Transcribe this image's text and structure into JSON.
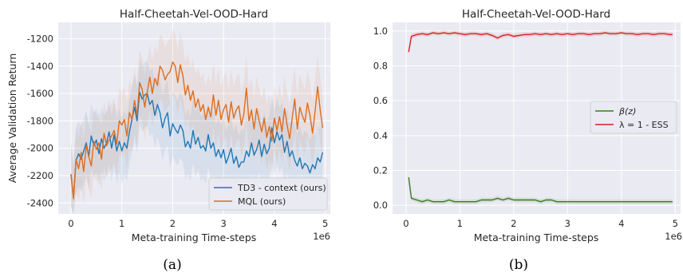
{
  "chart_data": [
    {
      "type": "line",
      "title": "Half-Cheetah-Vel-OOD-Hard",
      "xlabel": "Meta-training Time-steps",
      "ylabel": "Average Validation Return",
      "x_offset_text": "1e6",
      "xlim": [
        -0.25,
        5.1
      ],
      "ylim": [
        -2480,
        -1080
      ],
      "xticks": [
        0,
        1,
        2,
        3,
        4,
        5
      ],
      "xtick_labels": [
        "0",
        "1",
        "2",
        "3",
        "4",
        "5"
      ],
      "yticks": [
        -2400,
        -2200,
        -2000,
        -1800,
        -1600,
        -1400,
        -1200
      ],
      "ytick_labels": [
        "-2400",
        "-2200",
        "-2000",
        "-1800",
        "-1600",
        "-1400",
        "-1200"
      ],
      "grid": true,
      "legend_position": "lower-right",
      "caption": "(a)",
      "x": [
        0,
        0.05,
        0.1,
        0.15,
        0.2,
        0.25,
        0.3,
        0.35,
        0.4,
        0.45,
        0.5,
        0.55,
        0.6,
        0.65,
        0.7,
        0.75,
        0.8,
        0.85,
        0.9,
        0.95,
        1.0,
        1.05,
        1.1,
        1.15,
        1.2,
        1.25,
        1.3,
        1.35,
        1.4,
        1.45,
        1.5,
        1.55,
        1.6,
        1.65,
        1.7,
        1.75,
        1.8,
        1.85,
        1.9,
        1.95,
        2.0,
        2.05,
        2.1,
        2.15,
        2.2,
        2.25,
        2.3,
        2.35,
        2.4,
        2.45,
        2.5,
        2.55,
        2.6,
        2.65,
        2.7,
        2.75,
        2.8,
        2.85,
        2.9,
        2.95,
        3.0,
        3.05,
        3.1,
        3.15,
        3.2,
        3.25,
        3.3,
        3.35,
        3.4,
        3.45,
        3.5,
        3.55,
        3.6,
        3.65,
        3.7,
        3.75,
        3.8,
        3.85,
        3.9,
        3.95,
        4.0,
        4.05,
        4.1,
        4.15,
        4.2,
        4.25,
        4.3,
        4.35,
        4.4,
        4.45,
        4.5,
        4.55,
        4.6,
        4.65,
        4.7,
        4.75,
        4.8,
        4.85,
        4.9,
        4.95
      ],
      "series": [
        {
          "name": "TD3 - context (ours)",
          "color": "#1f77b4",
          "values": [
            -2190,
            -2360,
            -2090,
            -2040,
            -2080,
            -2020,
            -1960,
            -2060,
            -1910,
            -1980,
            -1940,
            -2040,
            -1930,
            -2000,
            -1960,
            -1880,
            -2000,
            -1900,
            -2020,
            -1950,
            -2020,
            -1960,
            -2000,
            -1880,
            -1790,
            -1700,
            -1800,
            -1590,
            -1640,
            -1610,
            -1600,
            -1680,
            -1650,
            -1760,
            -1680,
            -1740,
            -1850,
            -1780,
            -1740,
            -1910,
            -1820,
            -1860,
            -1890,
            -1830,
            -1870,
            -1990,
            -1950,
            -2000,
            -1870,
            -1970,
            -1920,
            -2000,
            -1980,
            -2020,
            -1900,
            -2000,
            -1960,
            -2060,
            -2010,
            -2070,
            -2010,
            -2110,
            -2060,
            -2000,
            -2110,
            -2060,
            -2140,
            -2100,
            -2100,
            -2020,
            -2060,
            -1960,
            -2050,
            -2010,
            -1940,
            -2060,
            -1970,
            -2040,
            -2000,
            -1850,
            -1960,
            -1880,
            -1940,
            -1900,
            -2030,
            -1950,
            -2060,
            -2020,
            -2090,
            -2130,
            -2070,
            -2150,
            -2110,
            -2130,
            -2180,
            -2120,
            -2150,
            -2070,
            -2100,
            -2030
          ]
        },
        {
          "name": "MQL (ours)",
          "color": "#dd6d1e",
          "values": [
            -2190,
            -2370,
            -2080,
            -2150,
            -2030,
            -2170,
            -1980,
            -2060,
            -2130,
            -1950,
            -2010,
            -1960,
            -2080,
            -1890,
            -1980,
            -1940,
            -1910,
            -1870,
            -1970,
            -1800,
            -1830,
            -1790,
            -1910,
            -1740,
            -1790,
            -1650,
            -1760,
            -1520,
            -1570,
            -1700,
            -1590,
            -1480,
            -1600,
            -1490,
            -1540,
            -1400,
            -1430,
            -1500,
            -1460,
            -1440,
            -1370,
            -1400,
            -1520,
            -1390,
            -1470,
            -1610,
            -1540,
            -1650,
            -1580,
            -1700,
            -1640,
            -1730,
            -1680,
            -1790,
            -1700,
            -1770,
            -1610,
            -1760,
            -1650,
            -1790,
            -1720,
            -1680,
            -1810,
            -1660,
            -1780,
            -1720,
            -1690,
            -1830,
            -1750,
            -1560,
            -1800,
            -1720,
            -1860,
            -1710,
            -1800,
            -1880,
            -1780,
            -1920,
            -1840,
            -1950,
            -1780,
            -1870,
            -1770,
            -1880,
            -1710,
            -1830,
            -1930,
            -1780,
            -1640,
            -1860,
            -1700,
            -1760,
            -1810,
            -1670,
            -1760,
            -1890,
            -1730,
            -1550,
            -1720,
            -1850
          ]
        }
      ]
    },
    {
      "type": "line",
      "title": "Half-Cheetah-Vel-OOD-Hard",
      "xlabel": "Meta-training Time-steps",
      "ylabel": "",
      "x_offset_text": "1e6",
      "xlim": [
        -0.25,
        5.1
      ],
      "ylim": [
        -0.05,
        1.05
      ],
      "xticks": [
        0,
        1,
        2,
        3,
        4,
        5
      ],
      "xtick_labels": [
        "0",
        "1",
        "2",
        "3",
        "4",
        "5"
      ],
      "yticks": [
        0.0,
        0.2,
        0.4,
        0.6,
        0.8,
        1.0
      ],
      "ytick_labels": [
        "0.0",
        "0.2",
        "0.4",
        "0.6",
        "0.8",
        "1.0"
      ],
      "grid": true,
      "legend_position": "center-right",
      "caption": "(b)",
      "x": [
        0.05,
        0.1,
        0.2,
        0.3,
        0.4,
        0.5,
        0.6,
        0.7,
        0.8,
        0.9,
        1.0,
        1.1,
        1.2,
        1.3,
        1.4,
        1.5,
        1.6,
        1.7,
        1.8,
        1.9,
        2.0,
        2.1,
        2.2,
        2.3,
        2.4,
        2.5,
        2.6,
        2.7,
        2.8,
        2.9,
        3.0,
        3.1,
        3.2,
        3.3,
        3.4,
        3.5,
        3.6,
        3.7,
        3.8,
        3.9,
        4.0,
        4.1,
        4.2,
        4.3,
        4.4,
        4.5,
        4.6,
        4.7,
        4.8,
        4.9,
        4.95
      ],
      "series": [
        {
          "name": "β(z)",
          "color": "#3a7a1f",
          "values": [
            0.16,
            0.04,
            0.03,
            0.02,
            0.03,
            0.02,
            0.02,
            0.02,
            0.03,
            0.02,
            0.02,
            0.02,
            0.02,
            0.02,
            0.03,
            0.03,
            0.03,
            0.04,
            0.03,
            0.04,
            0.03,
            0.03,
            0.03,
            0.03,
            0.03,
            0.02,
            0.03,
            0.03,
            0.02,
            0.02,
            0.02,
            0.02,
            0.02,
            0.02,
            0.02,
            0.02,
            0.02,
            0.02,
            0.02,
            0.02,
            0.02,
            0.02,
            0.02,
            0.02,
            0.02,
            0.02,
            0.02,
            0.02,
            0.02,
            0.02,
            0.02
          ]
        },
        {
          "name": "λ = 1 - ESS",
          "color": "#d62020",
          "values": [
            0.88,
            0.97,
            0.98,
            0.985,
            0.98,
            0.99,
            0.985,
            0.99,
            0.985,
            0.99,
            0.985,
            0.98,
            0.985,
            0.985,
            0.98,
            0.985,
            0.975,
            0.96,
            0.975,
            0.98,
            0.97,
            0.975,
            0.98,
            0.98,
            0.985,
            0.98,
            0.985,
            0.98,
            0.985,
            0.98,
            0.985,
            0.98,
            0.985,
            0.985,
            0.98,
            0.985,
            0.985,
            0.99,
            0.985,
            0.985,
            0.99,
            0.985,
            0.985,
            0.98,
            0.985,
            0.985,
            0.98,
            0.985,
            0.985,
            0.98,
            0.98
          ]
        }
      ]
    }
  ]
}
